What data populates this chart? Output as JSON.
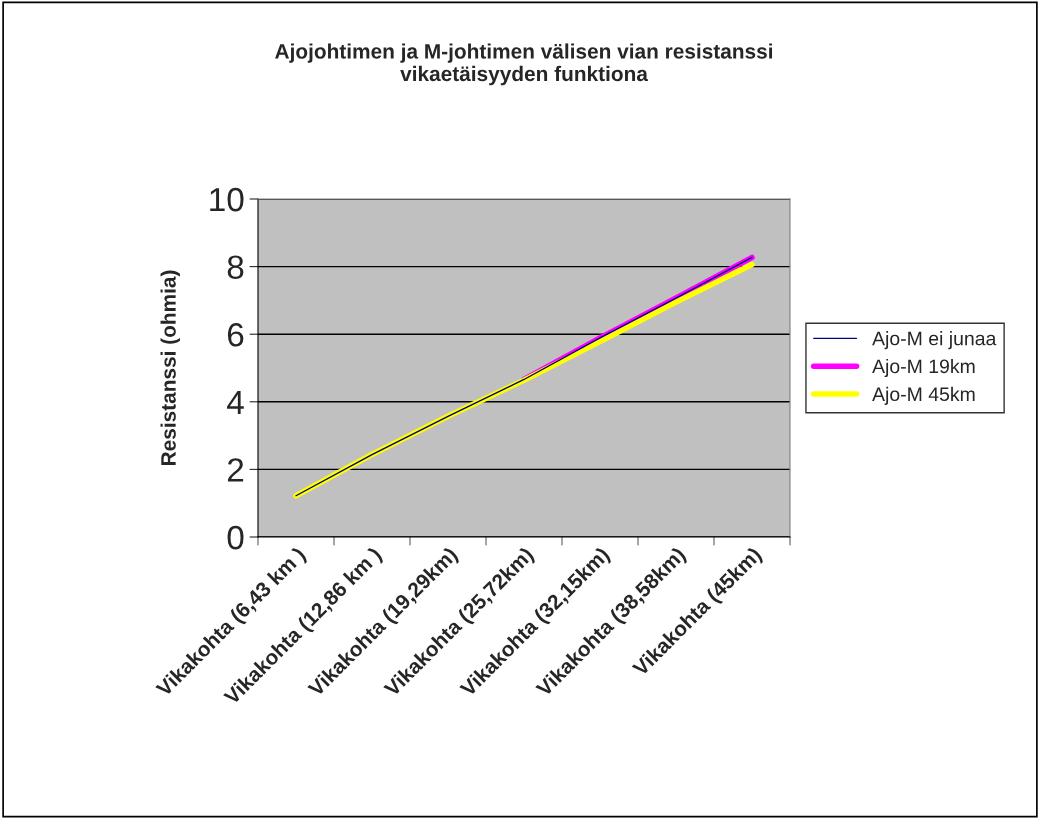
{
  "chart_data": {
    "type": "line",
    "title": "Ajojohtimen ja M-johtimen välisen vian resistanssi\nvikaetäisyyden funktiona",
    "ylabel": "Resistanssi (ohmia)",
    "categories": [
      "Vikakohta (6,43 km )",
      "Vikakohta (12,86 km )",
      "Vikakohta (19,29km)",
      "Vikakohta (25,72km)",
      "Vikakohta (32,15km)",
      "Vikakohta (38,58km)",
      "Vikakohta (45km)"
    ],
    "series": [
      {
        "name": "Ajo-M 19km",
        "color": "#ff00ff",
        "values": [
          null,
          null,
          null,
          4.66,
          5.89,
          7.07,
          8.27
        ]
      },
      {
        "name": "Ajo-M 45km",
        "color": "#ffff00",
        "values": [
          1.22,
          2.44,
          3.57,
          4.64,
          5.78,
          6.95,
          8.06
        ]
      },
      {
        "name": "Ajo-M ei junaa",
        "color": "#000080",
        "values": [
          1.22,
          2.44,
          3.57,
          4.66,
          5.89,
          7.07,
          8.27
        ]
      }
    ],
    "ylim": [
      0,
      10
    ],
    "yticks": [
      0,
      2,
      4,
      6,
      8,
      10
    ],
    "grid": "y",
    "legend": "right",
    "marker": "none",
    "line_style": "solid"
  }
}
